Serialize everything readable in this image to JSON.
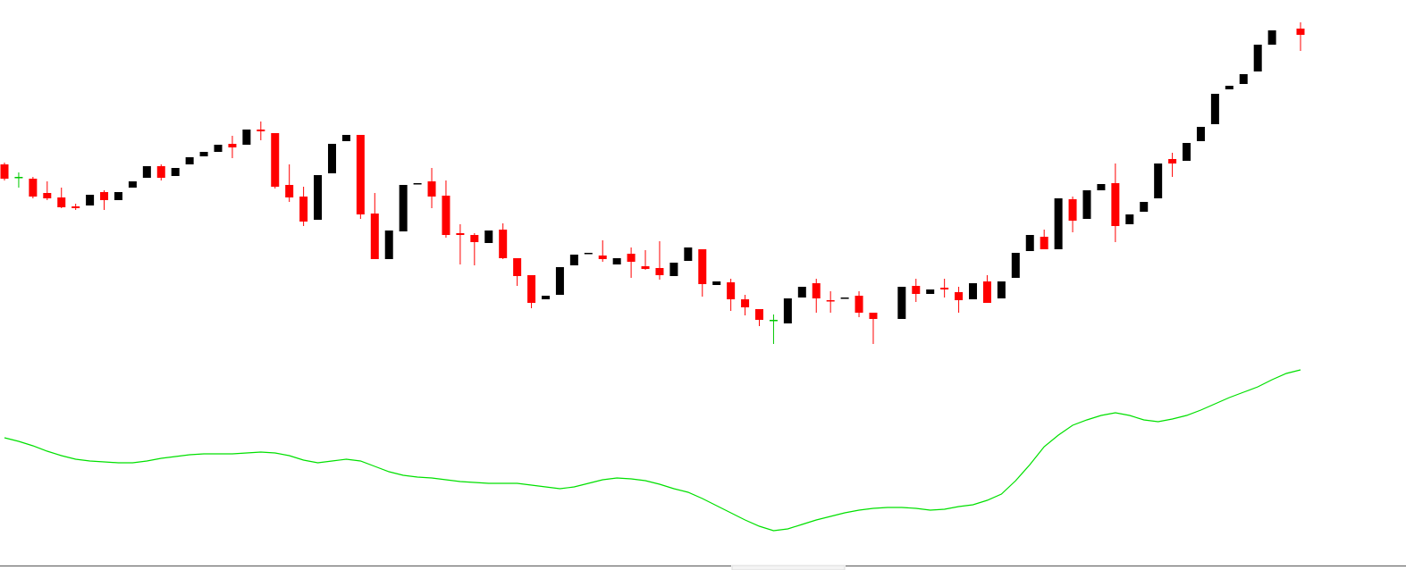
{
  "chart_data": {
    "type": "candlestick",
    "categories": [
      null,
      null,
      null,
      null,
      null,
      null,
      null,
      null,
      null,
      null,
      null,
      null,
      null,
      null,
      null,
      null,
      null,
      null,
      null,
      null,
      null,
      null,
      null,
      null,
      null,
      null,
      null,
      null,
      null,
      null,
      null,
      null,
      null,
      null,
      null,
      null,
      null,
      null,
      null,
      null,
      null,
      null,
      null,
      null,
      null,
      null,
      null,
      null,
      null,
      null,
      null,
      null,
      null,
      null,
      null,
      null,
      null,
      null,
      null,
      null,
      null,
      null,
      null,
      null,
      null,
      null,
      null,
      null,
      null,
      null,
      null,
      null,
      null,
      null,
      null,
      null,
      null,
      null,
      null,
      null,
      null,
      null,
      null,
      null,
      null,
      null,
      null,
      null,
      null,
      null,
      null,
      null
    ],
    "open": [
      454,
      440,
      438,
      422,
      417,
      407,
      408,
      423,
      414,
      428,
      439,
      452,
      441,
      454,
      463,
      468,
      477,
      476,
      493,
      489,
      431,
      418,
      392,
      444,
      480,
      487,
      399,
      348,
      379,
      432,
      435,
      419,
      377,
      375,
      366,
      381,
      349,
      330,
      303,
      308,
      341,
      354,
      352,
      342,
      354,
      340,
      338,
      329,
      346,
      359,
      319,
      322,
      303,
      292,
      280,
      276,
      305,
      321,
      302,
      304,
      307,
      288,
      null,
      281,
      318,
      309,
      316,
      311,
      303,
      323,
      304,
      327,
      357,
      373,
      359,
      415,
      393,
      425,
      433,
      387,
      401,
      416,
      460,
      458,
      480,
      499,
      538,
      544,
      558,
      588,
      null,
      606
    ],
    "high": [
      456,
      445,
      440,
      435,
      428,
      410,
      420,
      425,
      423,
      435,
      452,
      454,
      450,
      462,
      468,
      476,
      486,
      493,
      502,
      489,
      454,
      429,
      442,
      477,
      487,
      487,
      422,
      380,
      431,
      433,
      450,
      436,
      387,
      377,
      380,
      388,
      349,
      330,
      307,
      339,
      353,
      355,
      369,
      349,
      361,
      358,
      368,
      344,
      361,
      359,
      323,
      326,
      308,
      292,
      286,
      304,
      317,
      326,
      312,
      305,
      312,
      288,
      null,
      317,
      326,
      314,
      326,
      317,
      321,
      330,
      323,
      355,
      375,
      381,
      416,
      418,
      425,
      432,
      455,
      398,
      412,
      455,
      467,
      478,
      496,
      533,
      542,
      555,
      588,
      604,
      null,
      613
    ],
    "low": [
      436,
      428,
      416,
      414,
      405,
      403,
      408,
      403,
      414,
      428,
      439,
      436,
      441,
      454,
      463,
      468,
      461,
      476,
      481,
      427,
      412,
      385,
      392,
      444,
      480,
      393,
      348,
      348,
      379,
      432,
      405,
      372,
      342,
      341,
      366,
      348,
      318,
      293,
      303,
      308,
      341,
      354,
      345,
      342,
      327,
      336,
      325,
      329,
      346,
      306,
      319,
      290,
      285,
      273,
      253,
      276,
      305,
      288,
      288,
      304,
      283,
      253,
      null,
      281,
      300,
      309,
      305,
      288,
      303,
      299,
      304,
      327,
      357,
      359,
      359,
      378,
      393,
      425,
      367,
      387,
      401,
      416,
      440,
      458,
      480,
      499,
      538,
      544,
      558,
      588,
      null,
      581
    ],
    "close": [
      438,
      440,
      418,
      416,
      406,
      405,
      420,
      414,
      423,
      435,
      452,
      439,
      450,
      462,
      468,
      476,
      473,
      493,
      491,
      429,
      417,
      390,
      442,
      477,
      487,
      398,
      348,
      380,
      431,
      433,
      418,
      375,
      375,
      367,
      380,
      349,
      329,
      299,
      307,
      339,
      353,
      355,
      348,
      349,
      345,
      337,
      330,
      344,
      361,
      320,
      323,
      303,
      294,
      280,
      280,
      304,
      317,
      304,
      301,
      305,
      288,
      281,
      null,
      317,
      309,
      314,
      314,
      302,
      321,
      299,
      323,
      355,
      375,
      359,
      416,
      391,
      425,
      432,
      385,
      398,
      412,
      455,
      455,
      478,
      496,
      533,
      542,
      555,
      588,
      604,
      null,
      599
    ],
    "colors": {
      "up": "#000000",
      "down": "#ff0000",
      "unchanged": "#00c800"
    },
    "line": {
      "color": "#00e000",
      "values": [
        148,
        144,
        139,
        133,
        128,
        124,
        122,
        121,
        120,
        120,
        122,
        125,
        127,
        129,
        130,
        130,
        130,
        131,
        132,
        131,
        128,
        123,
        120,
        122,
        124,
        122,
        116,
        110,
        106,
        104,
        103,
        101,
        99,
        98,
        97,
        97,
        97,
        95,
        93,
        91,
        93,
        97,
        101,
        103,
        102,
        100,
        96,
        91,
        87,
        80,
        72,
        64,
        56,
        49,
        44,
        46,
        51,
        56,
        60,
        64,
        67,
        69,
        70,
        70,
        69,
        67,
        68,
        71,
        73,
        78,
        85,
        100,
        118,
        138,
        151,
        162,
        168,
        173,
        176,
        173,
        168,
        166,
        169,
        173,
        179,
        186,
        193,
        199,
        205,
        213,
        220,
        224
      ]
    },
    "ylim": [
      0,
      638
    ]
  }
}
